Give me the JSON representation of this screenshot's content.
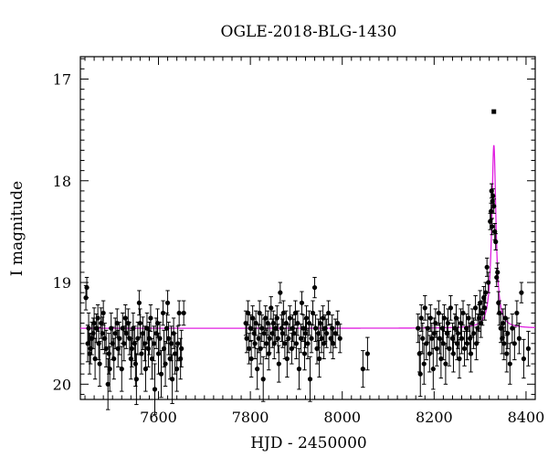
{
  "chart_data": {
    "type": "scatter",
    "title": "OGLE-2018-BLG-1430",
    "xlabel": "HJD - 2450000",
    "ylabel": "I magnitude",
    "xlim": [
      7430,
      8420
    ],
    "ylim": [
      20.15,
      16.78
    ],
    "y_inverted": true,
    "grid": false,
    "x_major_ticks": [
      7600,
      7800,
      8000,
      8200,
      8400
    ],
    "x_minor_step": 20,
    "y_major_ticks": [
      17,
      18,
      19,
      20
    ],
    "y_minor_step": 0.1,
    "colors": {
      "points": "#000000",
      "model": "#e020e0",
      "axes": "#000000"
    },
    "model": {
      "name": "",
      "baseline_mag": 19.45,
      "peak_time": 8330,
      "peak_mag": 17.65,
      "half_width_days": 5.5
    },
    "outlier": {
      "x": 8330,
      "y": 17.32,
      "marker": "square"
    },
    "points": [
      [
        7442,
        19.15,
        0.12
      ],
      [
        7444,
        19.05,
        0.1
      ],
      [
        7446,
        19.6,
        0.18
      ],
      [
        7448,
        19.45,
        0.15
      ],
      [
        7450,
        19.7,
        0.2
      ],
      [
        7452,
        19.65,
        0.15
      ],
      [
        7455,
        19.55,
        0.16
      ],
      [
        7458,
        19.5,
        0.15
      ],
      [
        7460,
        19.4,
        0.15
      ],
      [
        7462,
        19.75,
        0.2
      ],
      [
        7465,
        19.45,
        0.14
      ],
      [
        7468,
        19.35,
        0.13
      ],
      [
        7470,
        19.6,
        0.16
      ],
      [
        7472,
        19.8,
        0.22
      ],
      [
        7475,
        19.4,
        0.15
      ],
      [
        7478,
        19.5,
        0.16
      ],
      [
        7480,
        19.3,
        0.12
      ],
      [
        7483,
        19.55,
        0.15
      ],
      [
        7486,
        19.65,
        0.18
      ],
      [
        7490,
        20.0,
        0.25
      ],
      [
        7492,
        19.7,
        0.2
      ],
      [
        7494,
        19.85,
        0.22
      ],
      [
        7497,
        19.45,
        0.15
      ],
      [
        7500,
        19.6,
        0.16
      ],
      [
        7503,
        19.75,
        0.2
      ],
      [
        7506,
        19.5,
        0.15
      ],
      [
        7510,
        19.4,
        0.14
      ],
      [
        7512,
        19.65,
        0.18
      ],
      [
        7515,
        19.55,
        0.16
      ],
      [
        7520,
        19.85,
        0.22
      ],
      [
        7522,
        19.45,
        0.15
      ],
      [
        7525,
        19.6,
        0.17
      ],
      [
        7528,
        19.35,
        0.13
      ],
      [
        7530,
        19.5,
        0.15
      ],
      [
        7534,
        19.4,
        0.14
      ],
      [
        7537,
        19.55,
        0.16
      ],
      [
        7540,
        19.75,
        0.2
      ],
      [
        7542,
        19.65,
        0.18
      ],
      [
        7545,
        19.45,
        0.15
      ],
      [
        7548,
        19.6,
        0.17
      ],
      [
        7550,
        19.8,
        0.22
      ],
      [
        7552,
        19.95,
        0.25
      ],
      [
        7555,
        19.55,
        0.16
      ],
      [
        7558,
        19.2,
        0.12
      ],
      [
        7560,
        19.4,
        0.14
      ],
      [
        7563,
        19.7,
        0.2
      ],
      [
        7566,
        19.5,
        0.16
      ],
      [
        7570,
        19.6,
        0.17
      ],
      [
        7572,
        19.85,
        0.22
      ],
      [
        7575,
        19.45,
        0.15
      ],
      [
        7578,
        19.65,
        0.18
      ],
      [
        7580,
        19.55,
        0.16
      ],
      [
        7583,
        19.35,
        0.13
      ],
      [
        7586,
        19.75,
        0.2
      ],
      [
        7590,
        19.6,
        0.17
      ],
      [
        7592,
        20.05,
        0.25
      ],
      [
        7595,
        19.5,
        0.15
      ],
      [
        7598,
        19.4,
        0.14
      ],
      [
        7600,
        19.7,
        0.2
      ],
      [
        7603,
        19.55,
        0.16
      ],
      [
        7606,
        19.9,
        0.23
      ],
      [
        7610,
        19.3,
        0.12
      ],
      [
        7612,
        19.65,
        0.18
      ],
      [
        7615,
        19.8,
        0.22
      ],
      [
        7618,
        19.45,
        0.15
      ],
      [
        7620,
        19.2,
        0.12
      ],
      [
        7622,
        19.55,
        0.16
      ],
      [
        7625,
        19.75,
        0.2
      ],
      [
        7628,
        19.6,
        0.17
      ],
      [
        7630,
        19.95,
        0.24
      ],
      [
        7633,
        19.5,
        0.15
      ],
      [
        7636,
        19.7,
        0.2
      ],
      [
        7640,
        19.85,
        0.22
      ],
      [
        7642,
        19.6,
        0.17
      ],
      [
        7645,
        19.3,
        0.12
      ],
      [
        7648,
        19.75,
        0.2
      ],
      [
        7650,
        19.65,
        0.18
      ],
      [
        7655,
        19.3,
        0.12
      ],
      [
        7790,
        19.4,
        0.12
      ],
      [
        7792,
        19.55,
        0.14
      ],
      [
        7795,
        19.3,
        0.12
      ],
      [
        7797,
        19.65,
        0.15
      ],
      [
        7800,
        19.45,
        0.13
      ],
      [
        7802,
        19.75,
        0.18
      ],
      [
        7805,
        19.35,
        0.12
      ],
      [
        7808,
        19.5,
        0.14
      ],
      [
        7810,
        19.6,
        0.15
      ],
      [
        7812,
        19.4,
        0.12
      ],
      [
        7815,
        19.85,
        0.2
      ],
      [
        7818,
        19.55,
        0.14
      ],
      [
        7820,
        19.3,
        0.12
      ],
      [
        7822,
        19.65,
        0.15
      ],
      [
        7825,
        19.45,
        0.13
      ],
      [
        7828,
        19.95,
        0.22
      ],
      [
        7830,
        19.5,
        0.14
      ],
      [
        7833,
        19.35,
        0.12
      ],
      [
        7835,
        19.6,
        0.15
      ],
      [
        7838,
        19.4,
        0.12
      ],
      [
        7840,
        19.7,
        0.16
      ],
      [
        7842,
        19.55,
        0.14
      ],
      [
        7845,
        19.25,
        0.11
      ],
      [
        7848,
        19.5,
        0.14
      ],
      [
        7850,
        19.4,
        0.12
      ],
      [
        7852,
        19.6,
        0.15
      ],
      [
        7855,
        19.45,
        0.13
      ],
      [
        7858,
        19.35,
        0.12
      ],
      [
        7860,
        19.55,
        0.14
      ],
      [
        7862,
        19.8,
        0.18
      ],
      [
        7865,
        19.1,
        0.1
      ],
      [
        7868,
        19.45,
        0.13
      ],
      [
        7870,
        19.5,
        0.14
      ],
      [
        7872,
        19.3,
        0.12
      ],
      [
        7875,
        19.6,
        0.15
      ],
      [
        7878,
        19.4,
        0.12
      ],
      [
        7880,
        19.75,
        0.18
      ],
      [
        7883,
        19.55,
        0.14
      ],
      [
        7886,
        19.35,
        0.12
      ],
      [
        7890,
        19.65,
        0.15
      ],
      [
        7892,
        19.45,
        0.13
      ],
      [
        7895,
        19.5,
        0.14
      ],
      [
        7898,
        19.3,
        0.12
      ],
      [
        7900,
        19.6,
        0.15
      ],
      [
        7903,
        19.4,
        0.12
      ],
      [
        7906,
        19.85,
        0.2
      ],
      [
        7910,
        19.55,
        0.14
      ],
      [
        7912,
        19.2,
        0.11
      ],
      [
        7915,
        19.45,
        0.13
      ],
      [
        7918,
        19.7,
        0.16
      ],
      [
        7920,
        19.5,
        0.14
      ],
      [
        7922,
        19.35,
        0.12
      ],
      [
        7925,
        19.6,
        0.15
      ],
      [
        7928,
        19.4,
        0.12
      ],
      [
        7930,
        19.95,
        0.22
      ],
      [
        7933,
        19.55,
        0.14
      ],
      [
        7936,
        19.3,
        0.12
      ],
      [
        7940,
        19.05,
        0.1
      ],
      [
        7942,
        19.45,
        0.13
      ],
      [
        7945,
        19.65,
        0.15
      ],
      [
        7948,
        19.5,
        0.14
      ],
      [
        7950,
        19.75,
        0.18
      ],
      [
        7952,
        19.4,
        0.12
      ],
      [
        7955,
        19.55,
        0.14
      ],
      [
        7958,
        19.35,
        0.12
      ],
      [
        7960,
        19.6,
        0.15
      ],
      [
        7963,
        19.45,
        0.13
      ],
      [
        7966,
        19.5,
        0.14
      ],
      [
        7970,
        19.3,
        0.12
      ],
      [
        7975,
        19.55,
        0.14
      ],
      [
        7978,
        19.45,
        0.13
      ],
      [
        7980,
        19.6,
        0.15
      ],
      [
        7985,
        19.5,
        0.14
      ],
      [
        7990,
        19.4,
        0.12
      ],
      [
        7995,
        19.55,
        0.14
      ],
      [
        8045,
        19.85,
        0.18
      ],
      [
        8055,
        19.7,
        0.16
      ],
      [
        8165,
        19.45,
        0.14
      ],
      [
        8168,
        19.7,
        0.18
      ],
      [
        8170,
        19.9,
        0.22
      ],
      [
        8172,
        19.35,
        0.13
      ],
      [
        8175,
        19.55,
        0.15
      ],
      [
        8178,
        19.8,
        0.2
      ],
      [
        8180,
        19.25,
        0.12
      ],
      [
        8183,
        19.6,
        0.16
      ],
      [
        8186,
        19.45,
        0.14
      ],
      [
        8190,
        19.7,
        0.18
      ],
      [
        8192,
        19.35,
        0.13
      ],
      [
        8195,
        19.55,
        0.15
      ],
      [
        8198,
        19.85,
        0.2
      ],
      [
        8200,
        19.5,
        0.15
      ],
      [
        8203,
        19.4,
        0.14
      ],
      [
        8206,
        19.65,
        0.17
      ],
      [
        8210,
        19.3,
        0.12
      ],
      [
        8212,
        19.55,
        0.15
      ],
      [
        8215,
        19.75,
        0.19
      ],
      [
        8218,
        19.45,
        0.14
      ],
      [
        8220,
        19.6,
        0.16
      ],
      [
        8222,
        19.35,
        0.13
      ],
      [
        8225,
        19.8,
        0.2
      ],
      [
        8228,
        19.5,
        0.15
      ],
      [
        8230,
        19.4,
        0.14
      ],
      [
        8233,
        19.65,
        0.17
      ],
      [
        8236,
        19.25,
        0.12
      ],
      [
        8240,
        19.55,
        0.15
      ],
      [
        8242,
        19.7,
        0.18
      ],
      [
        8245,
        19.45,
        0.14
      ],
      [
        8248,
        19.35,
        0.13
      ],
      [
        8250,
        19.6,
        0.16
      ],
      [
        8252,
        19.5,
        0.15
      ],
      [
        8255,
        19.75,
        0.19
      ],
      [
        8258,
        19.4,
        0.14
      ],
      [
        8260,
        19.55,
        0.15
      ],
      [
        8263,
        19.3,
        0.12
      ],
      [
        8266,
        19.65,
        0.17
      ],
      [
        8270,
        19.45,
        0.14
      ],
      [
        8272,
        19.6,
        0.16
      ],
      [
        8275,
        19.35,
        0.13
      ],
      [
        8278,
        19.55,
        0.15
      ],
      [
        8280,
        19.7,
        0.18
      ],
      [
        8283,
        19.4,
        0.14
      ],
      [
        8286,
        19.5,
        0.15
      ],
      [
        8290,
        19.25,
        0.12
      ],
      [
        8292,
        19.6,
        0.16
      ],
      [
        8295,
        19.45,
        0.14
      ],
      [
        8298,
        19.35,
        0.13
      ],
      [
        8300,
        19.2,
        0.12
      ],
      [
        8302,
        19.4,
        0.14
      ],
      [
        8305,
        19.3,
        0.12
      ],
      [
        8308,
        19.15,
        0.11
      ],
      [
        8310,
        19.25,
        0.12
      ],
      [
        8312,
        19.1,
        0.1
      ],
      [
        8315,
        18.85,
        0.09
      ],
      [
        8318,
        19.0,
        0.1
      ],
      [
        8322,
        18.4,
        0.08
      ],
      [
        8324,
        18.3,
        0.08
      ],
      [
        8325,
        18.1,
        0.07
      ],
      [
        8326,
        18.45,
        0.08
      ],
      [
        8327,
        18.2,
        0.07
      ],
      [
        8328,
        18.15,
        0.07
      ],
      [
        8330,
        18.25,
        0.07
      ],
      [
        8332,
        18.5,
        0.08
      ],
      [
        8334,
        18.6,
        0.08
      ],
      [
        8336,
        18.95,
        0.09
      ],
      [
        8338,
        18.9,
        0.09
      ],
      [
        8340,
        19.2,
        0.11
      ],
      [
        8342,
        19.3,
        0.12
      ],
      [
        8345,
        19.45,
        0.14
      ],
      [
        8348,
        19.55,
        0.15
      ],
      [
        8350,
        19.4,
        0.14
      ],
      [
        8352,
        19.6,
        0.16
      ],
      [
        8355,
        19.35,
        0.13
      ],
      [
        8358,
        19.7,
        0.18
      ],
      [
        8360,
        19.5,
        0.15
      ],
      [
        8365,
        19.8,
        0.2
      ],
      [
        8370,
        19.45,
        0.14
      ],
      [
        8375,
        19.6,
        0.16
      ],
      [
        8380,
        19.3,
        0.12
      ],
      [
        8385,
        19.55,
        0.15
      ],
      [
        8390,
        19.1,
        0.1
      ],
      [
        8395,
        19.75,
        0.19
      ],
      [
        8405,
        19.65,
        0.17
      ]
    ]
  }
}
